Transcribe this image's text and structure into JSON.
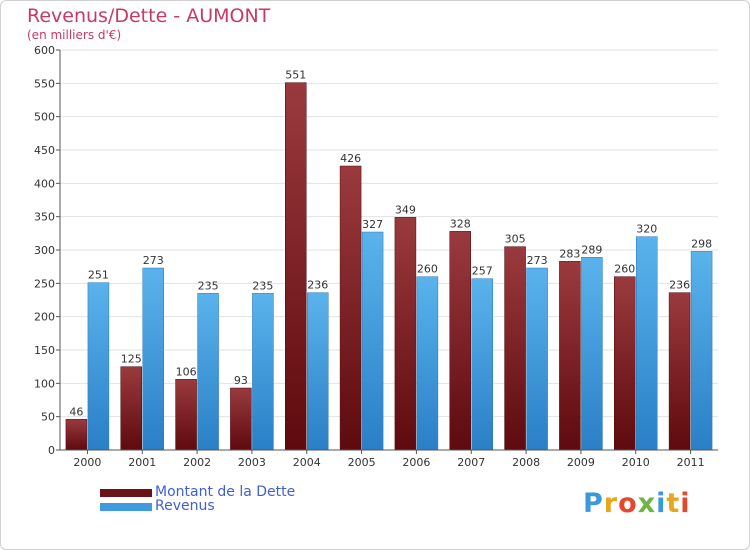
{
  "chart_data": {
    "type": "bar",
    "title": "Revenus/Dette - AUMONT",
    "subtitle": "(en milliers d'€)",
    "xlabel": "",
    "ylabel": "",
    "ylim": [
      0,
      600
    ],
    "yticks": [
      0,
      50,
      100,
      150,
      200,
      250,
      300,
      350,
      400,
      450,
      500,
      550,
      600
    ],
    "grid": true,
    "legend_position": "bottom-left",
    "categories": [
      "2000",
      "2001",
      "2002",
      "2003",
      "2004",
      "2005",
      "2006",
      "2007",
      "2008",
      "2009",
      "2010",
      "2011"
    ],
    "series": [
      {
        "name": "Montant de la Dette",
        "color": "#7a1f24",
        "values": [
          46,
          125,
          106,
          93,
          551,
          426,
          349,
          328,
          305,
          283,
          260,
          236
        ]
      },
      {
        "name": "Revenus",
        "color": "#4aa3e0",
        "values": [
          251,
          273,
          235,
          235,
          236,
          327,
          260,
          257,
          273,
          289,
          320,
          298
        ]
      }
    ]
  },
  "logo": {
    "text": "Proxiti"
  }
}
